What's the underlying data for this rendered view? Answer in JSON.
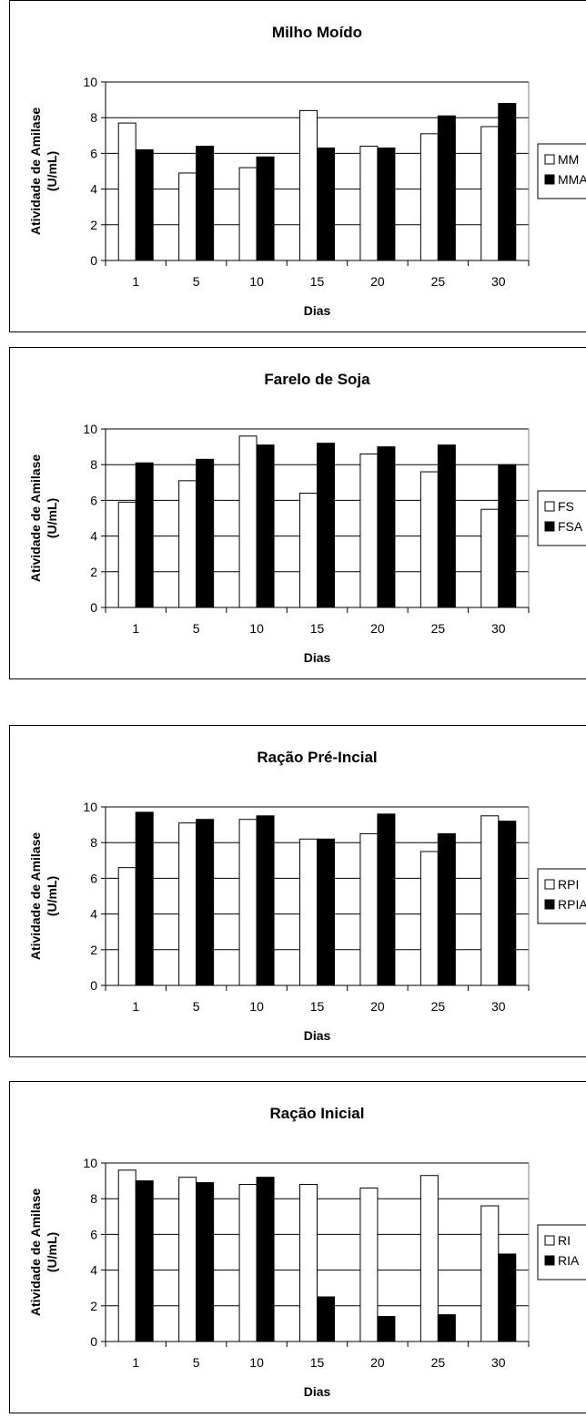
{
  "chart_data": [
    {
      "type": "bar",
      "title": "Milho Moído",
      "xlabel": "Dias",
      "ylabel": [
        "Atividade de Amilase",
        "(U/mL)"
      ],
      "categories": [
        "1",
        "5",
        "10",
        "15",
        "20",
        "25",
        "30"
      ],
      "ylim": [
        0,
        10
      ],
      "yticks": [
        0,
        2,
        4,
        6,
        8,
        10
      ],
      "grid": true,
      "legend_position": "right",
      "series": [
        {
          "name": "MM",
          "color": "#ffffff",
          "values": [
            7.7,
            4.9,
            5.2,
            8.4,
            6.4,
            7.1,
            7.5
          ]
        },
        {
          "name": "MMA",
          "color": "#000000",
          "values": [
            6.2,
            6.4,
            5.8,
            6.3,
            6.3,
            8.1,
            8.8
          ]
        }
      ]
    },
    {
      "type": "bar",
      "title": "Farelo de Soja",
      "xlabel": "Dias",
      "ylabel": [
        "Atividade de Amilase",
        "(U/mL)"
      ],
      "categories": [
        "1",
        "5",
        "10",
        "15",
        "20",
        "25",
        "30"
      ],
      "ylim": [
        0,
        10
      ],
      "yticks": [
        0,
        2,
        4,
        6,
        8,
        10
      ],
      "grid": true,
      "legend_position": "right",
      "series": [
        {
          "name": "FS",
          "color": "#ffffff",
          "values": [
            5.9,
            7.1,
            9.6,
            6.4,
            8.6,
            7.6,
            5.5
          ]
        },
        {
          "name": "FSA",
          "color": "#000000",
          "values": [
            8.1,
            8.3,
            9.1,
            9.2,
            9.0,
            9.1,
            8.0
          ]
        }
      ]
    },
    {
      "type": "bar",
      "title": "Ração Pré-Incial",
      "xlabel": "Dias",
      "ylabel": [
        "Atividade de Amilase",
        "(U/mL)"
      ],
      "categories": [
        "1",
        "5",
        "10",
        "15",
        "20",
        "25",
        "30"
      ],
      "ylim": [
        0,
        10
      ],
      "yticks": [
        0,
        2,
        4,
        6,
        8,
        10
      ],
      "grid": true,
      "legend_position": "right",
      "series": [
        {
          "name": "RPI",
          "color": "#ffffff",
          "values": [
            6.6,
            9.1,
            9.3,
            8.2,
            8.5,
            7.5,
            9.5
          ]
        },
        {
          "name": "RPIA",
          "color": "#000000",
          "values": [
            9.7,
            9.3,
            9.5,
            8.2,
            9.6,
            8.5,
            9.2
          ]
        }
      ]
    },
    {
      "type": "bar",
      "title": "Ração Inicial",
      "xlabel": "Dias",
      "ylabel": [
        "Atividade de Amilase",
        "(U/mL)"
      ],
      "categories": [
        "1",
        "5",
        "10",
        "15",
        "20",
        "25",
        "30"
      ],
      "ylim": [
        0,
        10
      ],
      "yticks": [
        0,
        2,
        4,
        6,
        8,
        10
      ],
      "grid": true,
      "legend_position": "right",
      "series": [
        {
          "name": "RI",
          "color": "#ffffff",
          "values": [
            9.6,
            9.2,
            8.8,
            8.8,
            8.6,
            9.3,
            7.6
          ]
        },
        {
          "name": "RIA",
          "color": "#000000",
          "values": [
            9.0,
            8.9,
            9.2,
            2.5,
            1.4,
            1.5,
            4.9
          ]
        }
      ]
    }
  ]
}
